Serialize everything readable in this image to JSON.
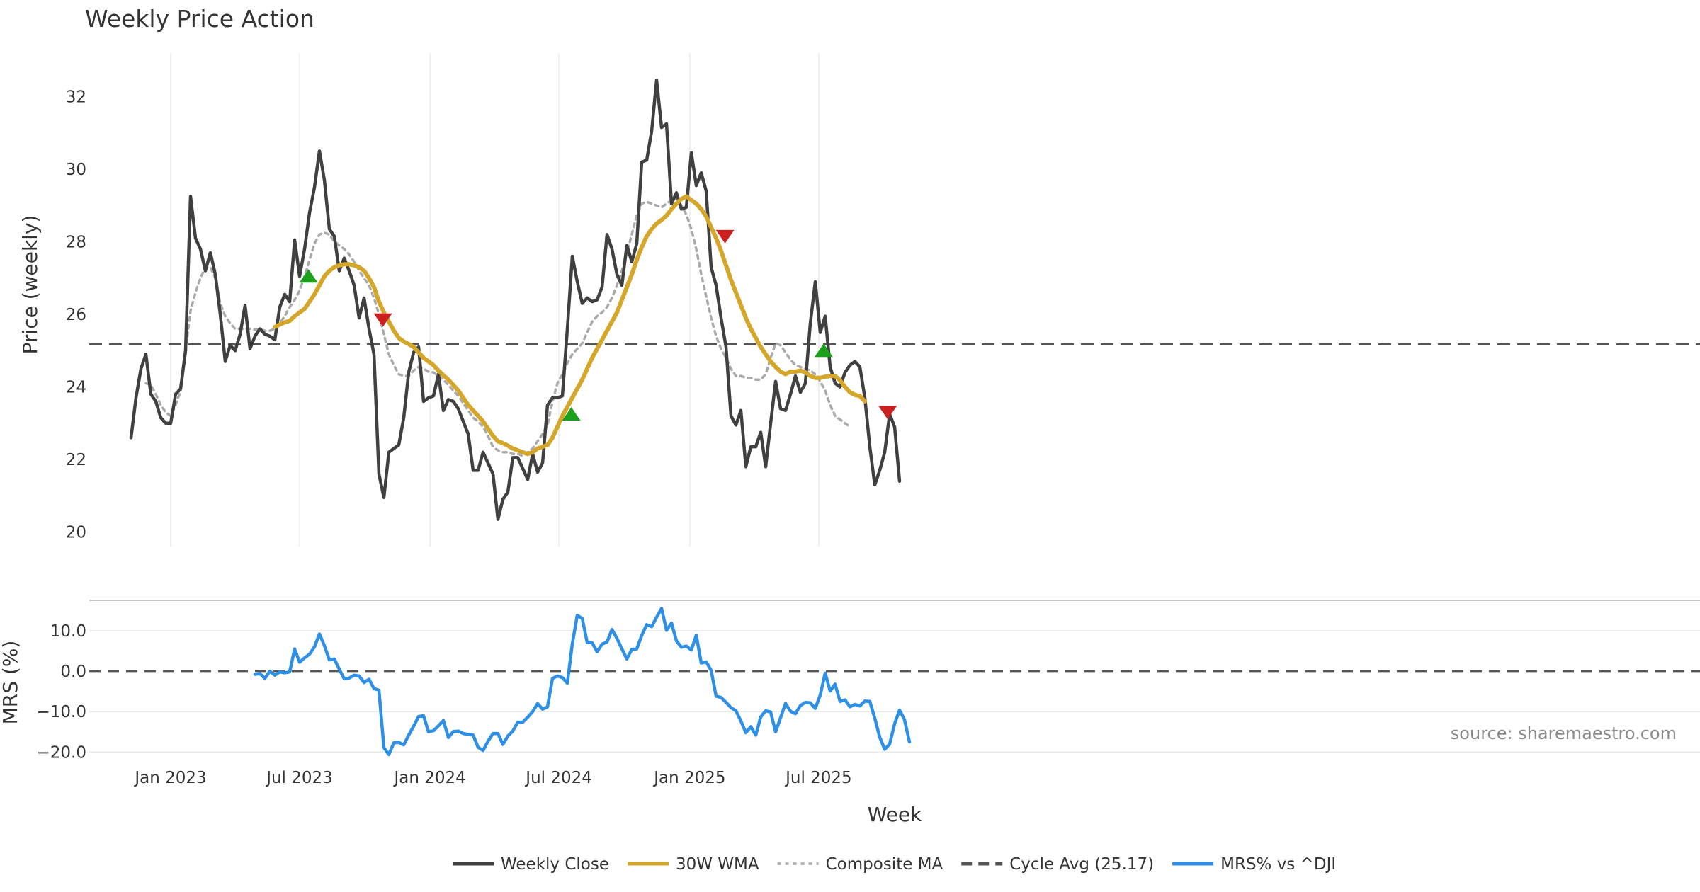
{
  "chart_data": [
    {
      "type": "line",
      "title": "Weekly Price Action",
      "ylabel": "Price (weekly)",
      "xlabel": "Week",
      "ylim": [
        19.6,
        33.2
      ],
      "yticks": [
        20,
        22,
        24,
        26,
        28,
        30,
        32
      ],
      "xticks": [
        {
          "label": "Jan 2023",
          "value": 0
        },
        {
          "label": "Jul 2023",
          "value": 26
        },
        {
          "label": "Jan 2024",
          "value": 52.3
        },
        {
          "label": "Jul 2024",
          "value": 78.3
        },
        {
          "label": "Jan 2025",
          "value": 104.7
        },
        {
          "label": "Jul 2025",
          "value": 130.7
        }
      ],
      "grid": "vertical",
      "x_unit": "weeks from Jan 2023",
      "cycle_avg": 25.17,
      "series": [
        {
          "name": "Weekly Close",
          "color": "#404040",
          "x_start": -8,
          "values": [
            22.6,
            23.7,
            24.5,
            24.9,
            23.8,
            23.6,
            23.15,
            23.0,
            23.0,
            23.8,
            23.95,
            25.0,
            29.25,
            28.1,
            27.8,
            27.2,
            27.7,
            27.1,
            26.0,
            24.7,
            25.15,
            25.0,
            25.45,
            26.25,
            25.05,
            25.4,
            25.6,
            25.45,
            25.4,
            25.3,
            26.2,
            26.55,
            26.35,
            28.05,
            27.05,
            27.8,
            28.8,
            29.5,
            30.5,
            29.7,
            28.35,
            28.15,
            27.2,
            27.55,
            27.2,
            26.8,
            25.9,
            26.45,
            25.6,
            24.9,
            21.6,
            20.95,
            22.2,
            22.3,
            22.4,
            23.15,
            24.4,
            24.95,
            25.1,
            23.6,
            23.7,
            23.75,
            24.35,
            23.35,
            23.65,
            23.6,
            23.4,
            23.05,
            22.7,
            21.7,
            21.7,
            22.2,
            21.9,
            21.6,
            20.35,
            20.9,
            21.1,
            22.05,
            22.05,
            21.75,
            21.45,
            22.15,
            21.65,
            21.9,
            23.5,
            23.7,
            23.7,
            23.75,
            25.6,
            27.6,
            26.9,
            26.3,
            26.45,
            26.35,
            26.4,
            26.75,
            28.2,
            27.8,
            27.1,
            26.8,
            27.9,
            27.45,
            27.95,
            30.2,
            30.25,
            31.05,
            32.45,
            31.15,
            31.25,
            29.05,
            29.35,
            28.9,
            28.95,
            30.45,
            29.55,
            29.9,
            29.4,
            27.3,
            26.8,
            25.9,
            25.1,
            23.2,
            22.95,
            23.35,
            21.8,
            22.35,
            22.35,
            22.75,
            21.8,
            23.0,
            24.15,
            23.4,
            23.35,
            23.8,
            24.3,
            23.85,
            24.1,
            25.75,
            26.9,
            25.5,
            25.95,
            24.55,
            24.1,
            24.0,
            24.4,
            24.6,
            24.7,
            24.55,
            23.7,
            22.35,
            21.3,
            21.7,
            22.2,
            23.25,
            22.9,
            21.4
          ]
        },
        {
          "name": "30W WMA",
          "color": "#D4A62A",
          "x_start": 21,
          "values": [
            25.65,
            25.72,
            25.78,
            25.82,
            25.95,
            26.05,
            26.15,
            26.35,
            26.55,
            26.8,
            27.05,
            27.2,
            27.3,
            27.35,
            27.38,
            27.38,
            27.35,
            27.3,
            27.2,
            27.0,
            26.75,
            26.35,
            26.05,
            25.8,
            25.55,
            25.35,
            25.25,
            25.18,
            25.1,
            24.95,
            24.8,
            24.7,
            24.6,
            24.45,
            24.32,
            24.2,
            24.05,
            23.9,
            23.7,
            23.5,
            23.35,
            23.2,
            23.05,
            22.85,
            22.65,
            22.5,
            22.45,
            22.38,
            22.3,
            22.25,
            22.2,
            22.15,
            22.2,
            22.3,
            22.35,
            22.4,
            22.6,
            22.9,
            23.2,
            23.45,
            23.7,
            23.95,
            24.2,
            24.5,
            24.8,
            25.05,
            25.3,
            25.55,
            25.8,
            26.05,
            26.4,
            26.75,
            27.1,
            27.5,
            27.85,
            28.15,
            28.35,
            28.5,
            28.6,
            28.72,
            28.9,
            29.05,
            29.18,
            29.25,
            29.15,
            29.05,
            28.9,
            28.7,
            28.4,
            28.1,
            27.75,
            27.35,
            26.95,
            26.6,
            26.25,
            25.9,
            25.6,
            25.35,
            25.1,
            24.9,
            24.7,
            24.55,
            24.42,
            24.35,
            24.42,
            24.42,
            24.45,
            24.4,
            24.3,
            24.25,
            24.25,
            24.28,
            24.3,
            24.3,
            24.18,
            24.0,
            23.85,
            23.78,
            23.75,
            23.6
          ]
        },
        {
          "name": "Composite MA",
          "color": "#AAAAAA",
          "dashed": true,
          "x_start": -5,
          "values": [
            24.1,
            24.05,
            23.8,
            23.5,
            23.3,
            23.2,
            23.5,
            23.9,
            25.0,
            26.1,
            26.6,
            27.0,
            27.3,
            27.3,
            27.0,
            26.3,
            25.95,
            25.75,
            25.6,
            25.6,
            25.6,
            25.6,
            25.58,
            25.58,
            25.55,
            25.55,
            25.6,
            25.75,
            25.95,
            26.2,
            26.4,
            26.65,
            27.05,
            27.5,
            27.95,
            28.2,
            28.25,
            28.2,
            28.0,
            27.9,
            27.8,
            27.65,
            27.45,
            27.2,
            27.0,
            26.8,
            26.45,
            26.0,
            25.45,
            24.9,
            24.6,
            24.35,
            24.3,
            24.3,
            24.45,
            24.55,
            24.5,
            24.42,
            24.4,
            24.3,
            24.2,
            24.05,
            23.9,
            23.75,
            23.55,
            23.35,
            23.15,
            23.05,
            22.9,
            22.65,
            22.35,
            22.25,
            22.2,
            22.2,
            22.15,
            22.15,
            22.1,
            22.2,
            22.3,
            22.5,
            22.7,
            22.95,
            23.6,
            24.1,
            24.35,
            24.65,
            24.9,
            25.05,
            25.2,
            25.5,
            25.8,
            25.95,
            26.05,
            26.2,
            26.45,
            26.8,
            27.2,
            27.7,
            28.2,
            28.75,
            29.05,
            29.1,
            29.05,
            29.0,
            28.95,
            29.05,
            29.15,
            29.2,
            29.0,
            28.75,
            28.35,
            27.8,
            27.1,
            26.5,
            25.9,
            25.4,
            25.05,
            24.8,
            24.5,
            24.3,
            24.3,
            24.25,
            24.25,
            24.2,
            24.2,
            24.35,
            24.8,
            25.2,
            25.15,
            24.95,
            24.75,
            24.6,
            24.55,
            24.5,
            24.45,
            24.35,
            24.15,
            23.9,
            23.5,
            23.2,
            23.1,
            23.0,
            22.9
          ]
        }
      ],
      "signals": [
        {
          "type": "buy",
          "x": 27.8,
          "y": 27.05,
          "color": "#1DA11D"
        },
        {
          "type": "sell",
          "x": 42.8,
          "y": 25.85,
          "color": "#CC1F1F"
        },
        {
          "type": "buy",
          "x": 80.8,
          "y": 23.25,
          "color": "#1DA11D"
        },
        {
          "type": "sell",
          "x": 111.8,
          "y": 28.15,
          "color": "#CC1F1F"
        },
        {
          "type": "buy",
          "x": 131.7,
          "y": 25.0,
          "color": "#1DA11D"
        },
        {
          "type": "sell",
          "x": 144.6,
          "y": 23.3,
          "color": "#CC1F1F"
        }
      ]
    },
    {
      "type": "line",
      "ylabel": "MRS (%)",
      "ylim": [
        -21.5,
        17.5
      ],
      "yticks": [
        {
          "label": "10.0",
          "value": 10
        },
        {
          "label": "0.0",
          "value": 0
        },
        {
          "label": "−10.0",
          "value": -10
        },
        {
          "label": "−20.0",
          "value": -20
        }
      ],
      "series": [
        {
          "name": "MRS% vs ^DJI",
          "color": "#2E8FE6",
          "x_start": 17,
          "values": [
            -0.8,
            -0.6,
            -1.8,
            0.0,
            -1.0,
            -0.2,
            -0.4,
            -0.2,
            5.5,
            2.2,
            3.3,
            4.2,
            6.0,
            9.2,
            6.3,
            2.8,
            3.0,
            0.5,
            -1.9,
            -1.7,
            -1.0,
            -1.2,
            -2.8,
            -2.0,
            -4.3,
            -4.7,
            -18.9,
            -20.6,
            -17.7,
            -17.6,
            -18.2,
            -15.8,
            -13.6,
            -11.2,
            -11.0,
            -15.0,
            -14.7,
            -13.5,
            -12.2,
            -16.4,
            -14.9,
            -14.8,
            -15.4,
            -15.6,
            -15.8,
            -18.8,
            -19.6,
            -17.3,
            -15.4,
            -15.4,
            -18.1,
            -16.0,
            -14.8,
            -12.6,
            -12.6,
            -11.4,
            -10.0,
            -8.0,
            -9.4,
            -8.8,
            -1.8,
            -1.2,
            -1.6,
            -3.0,
            6.8,
            13.8,
            13.0,
            7.1,
            7.0,
            4.8,
            6.7,
            7.2,
            10.3,
            8.1,
            5.5,
            3.0,
            5.4,
            5.5,
            8.8,
            11.5,
            11.0,
            13.3,
            15.5,
            10.1,
            11.9,
            7.5,
            5.9,
            6.2,
            5.2,
            8.9,
            2.0,
            2.3,
            0.2,
            -6.2,
            -6.5,
            -7.7,
            -9.0,
            -9.8,
            -12.3,
            -15.2,
            -13.7,
            -15.8,
            -11.3,
            -9.8,
            -10.1,
            -15.0,
            -11.5,
            -8.0,
            -9.9,
            -10.5,
            -8.5,
            -7.7,
            -7.8,
            -9.2,
            -5.9,
            -0.5,
            -4.9,
            -3.2,
            -7.5,
            -7.1,
            -8.8,
            -8.2,
            -8.6,
            -7.4,
            -7.5,
            -11.6,
            -16.3,
            -19.3,
            -18.0,
            -13.0,
            -9.6,
            -12.0,
            -17.5
          ]
        }
      ]
    }
  ],
  "footer": {
    "source": "source: sharemaestro.com",
    "cycle_avg_label": "Cycle Avg (25.17)"
  },
  "legend": [
    {
      "label": "Weekly Close",
      "color": "#404040",
      "style": "solid"
    },
    {
      "label": "30W WMA",
      "color": "#D4A62A",
      "style": "solid"
    },
    {
      "label": "Composite MA",
      "color": "#AAAAAA",
      "style": "dotted"
    },
    {
      "label": "Cycle Avg (25.17)",
      "color": "#555555",
      "style": "dashed"
    },
    {
      "label": "MRS% vs ^DJI",
      "color": "#2E8FE6",
      "style": "solid"
    }
  ]
}
